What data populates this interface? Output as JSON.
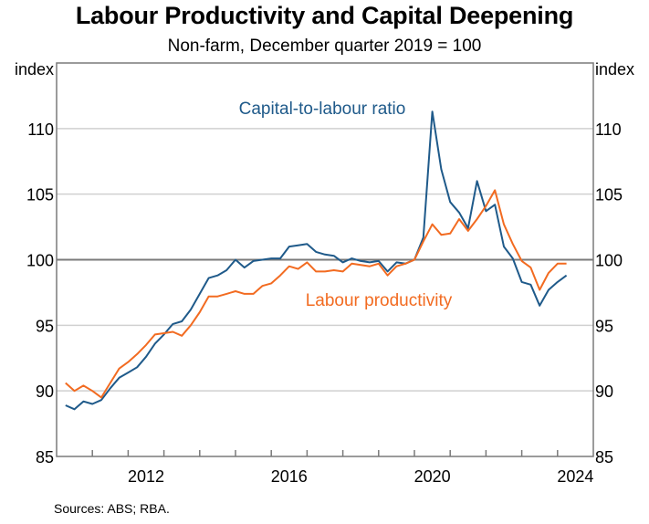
{
  "chart_data": {
    "type": "line",
    "title": "Labour Productivity and Capital Deepening",
    "subtitle": "Non-farm, December quarter 2019 = 100",
    "ylabel_left": "index",
    "ylabel_right": "index",
    "ylim": [
      85,
      115
    ],
    "yticks": [
      85,
      90,
      95,
      100,
      105,
      110
    ],
    "ytick_labels": [
      "85",
      "90",
      "95",
      "100",
      "105",
      "110"
    ],
    "xlim": [
      2010,
      2025
    ],
    "xtick_labels": [
      {
        "label": "2012",
        "year": 2012
      },
      {
        "label": "2016",
        "year": 2016
      },
      {
        "label": "2020",
        "year": 2020
      },
      {
        "label": "2024",
        "year": 2024
      }
    ],
    "reference_line": 100,
    "grid": true,
    "frequency": "quarterly",
    "start": "Mar-2010",
    "end": "Mar-2024",
    "series": [
      {
        "name": "Capital-to-labour ratio",
        "color": "#1f5a8a",
        "values": [
          88.9,
          88.6,
          89.2,
          89.0,
          89.3,
          90.2,
          91.0,
          91.4,
          91.8,
          92.6,
          93.6,
          94.3,
          95.1,
          95.3,
          96.2,
          97.4,
          98.6,
          98.8,
          99.2,
          100.0,
          99.4,
          99.9,
          100.0,
          100.1,
          100.1,
          101.0,
          101.1,
          101.2,
          100.6,
          100.4,
          100.3,
          99.8,
          100.1,
          99.9,
          99.8,
          99.9,
          99.1,
          99.8,
          99.7,
          100.0,
          101.7,
          111.3,
          106.9,
          104.4,
          103.6,
          102.4,
          106.0,
          103.7,
          104.2,
          101.0,
          100.1,
          98.3,
          98.1,
          96.5,
          97.7,
          98.3,
          98.8
        ]
      },
      {
        "name": "Labour productivity",
        "color": "#f26b21",
        "values": [
          90.6,
          90.0,
          90.4,
          90.0,
          89.5,
          90.6,
          91.7,
          92.2,
          92.8,
          93.5,
          94.3,
          94.4,
          94.5,
          94.2,
          95.0,
          96.0,
          97.2,
          97.2,
          97.4,
          97.6,
          97.4,
          97.4,
          98.0,
          98.2,
          98.8,
          99.5,
          99.3,
          99.8,
          99.1,
          99.1,
          99.2,
          99.1,
          99.7,
          99.6,
          99.5,
          99.7,
          98.8,
          99.5,
          99.7,
          100.0,
          101.4,
          102.7,
          101.9,
          102.0,
          103.1,
          102.2,
          103.1,
          104.1,
          105.3,
          102.7,
          101.2,
          99.9,
          99.4,
          97.7,
          99.0,
          99.7,
          99.7
        ]
      }
    ],
    "annotations": [
      {
        "text": "Capital-to-labour ratio",
        "series": "Capital-to-labour ratio",
        "near": "top-centre"
      },
      {
        "text": "Labour productivity",
        "series": "Labour productivity",
        "near": "centre, below 100 line"
      }
    ],
    "source": "Sources: ABS; RBA."
  }
}
